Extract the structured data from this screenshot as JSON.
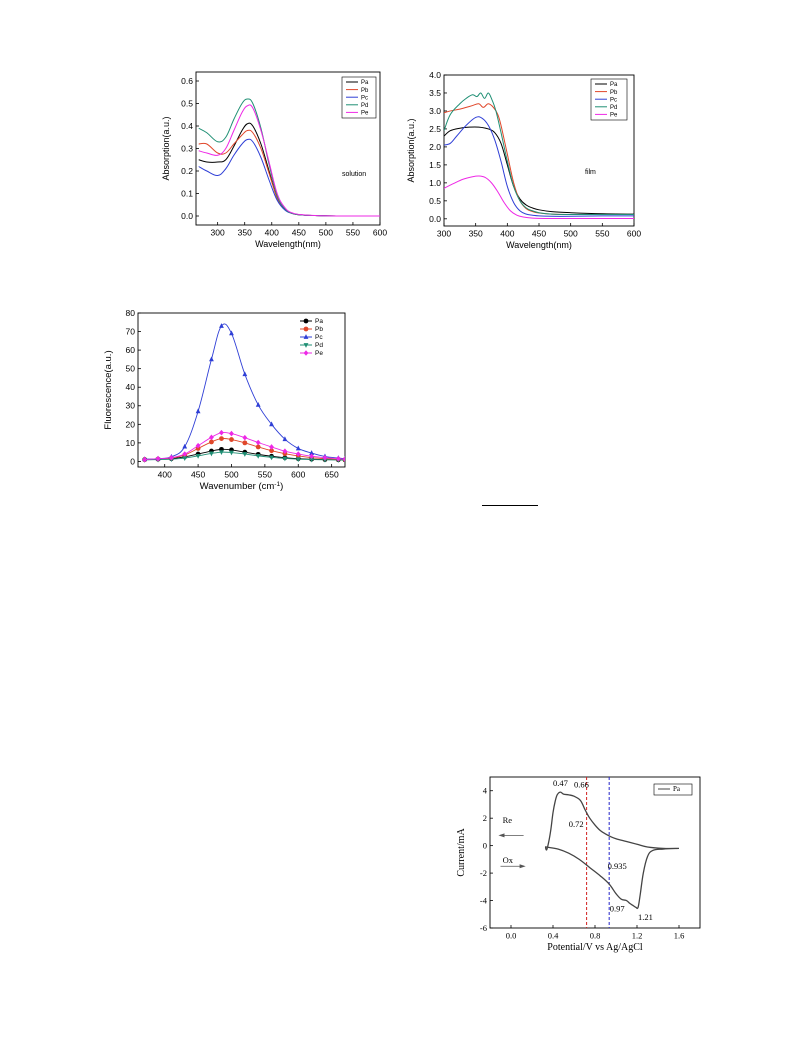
{
  "colors": {
    "axis": "#000000",
    "Pa": "#000000",
    "Pb": "#e0472a",
    "Pc": "#2f3fd6",
    "Pd": "#1f8f74",
    "Pe": "#ee28e6",
    "cv_red": "#d22020",
    "cv_blue": "#2626c8",
    "cv_curve": "#444444"
  },
  "chart_data": [
    {
      "id": "abs-solution",
      "type": "line",
      "title": "",
      "annotation": "solution",
      "xlabel": "Wavelength(nm)",
      "ylabel": "Absorption(a.u.)",
      "xlim": [
        260,
        600
      ],
      "ylim": [
        -0.04,
        0.64
      ],
      "xticks": [
        300,
        350,
        400,
        450,
        500,
        550,
        600
      ],
      "xtick_labels": [
        "300",
        "350",
        "400",
        "450",
        "500",
        "550",
        "600"
      ],
      "yticks": [
        0.0,
        0.1,
        0.2,
        0.3,
        0.4,
        0.5,
        0.6
      ],
      "ytick_labels": [
        "0.0",
        "0.1",
        "0.2",
        "0.3",
        "0.4",
        "0.5",
        "0.6"
      ],
      "legend_position": "top-right",
      "grid": false,
      "series": [
        {
          "name": "Pa",
          "color": "#000000",
          "x": [
            265,
            280,
            300,
            315,
            330,
            345,
            355,
            365,
            380,
            395,
            410,
            425,
            440,
            460,
            480,
            520,
            600
          ],
          "y": [
            0.25,
            0.24,
            0.24,
            0.25,
            0.31,
            0.38,
            0.41,
            0.4,
            0.32,
            0.2,
            0.08,
            0.03,
            0.01,
            0.004,
            0.002,
            0.0,
            0.0
          ]
        },
        {
          "name": "Pb",
          "color": "#e0472a",
          "x": [
            265,
            280,
            300,
            315,
            330,
            345,
            355,
            365,
            380,
            395,
            410,
            425,
            440,
            460,
            480,
            520,
            600
          ],
          "y": [
            0.32,
            0.32,
            0.28,
            0.28,
            0.32,
            0.36,
            0.38,
            0.37,
            0.3,
            0.19,
            0.08,
            0.03,
            0.01,
            0.004,
            0.002,
            0.0,
            0.0
          ]
        },
        {
          "name": "Pc",
          "color": "#2f3fd6",
          "x": [
            265,
            280,
            300,
            315,
            330,
            345,
            355,
            365,
            380,
            395,
            410,
            425,
            440,
            460,
            480,
            520,
            600
          ],
          "y": [
            0.22,
            0.2,
            0.18,
            0.21,
            0.27,
            0.32,
            0.34,
            0.33,
            0.26,
            0.16,
            0.07,
            0.025,
            0.01,
            0.004,
            0.002,
            0.0,
            0.0
          ]
        },
        {
          "name": "Pd",
          "color": "#1f8f74",
          "x": [
            265,
            280,
            300,
            315,
            330,
            345,
            355,
            365,
            380,
            395,
            410,
            425,
            440,
            460,
            480,
            520,
            600
          ],
          "y": [
            0.39,
            0.37,
            0.33,
            0.35,
            0.43,
            0.5,
            0.52,
            0.5,
            0.39,
            0.23,
            0.09,
            0.03,
            0.01,
            0.004,
            0.002,
            0.0,
            0.0
          ]
        },
        {
          "name": "Pe",
          "color": "#ee28e6",
          "x": [
            265,
            280,
            300,
            315,
            330,
            345,
            355,
            365,
            380,
            395,
            410,
            425,
            440,
            460,
            480,
            520,
            600
          ],
          "y": [
            0.29,
            0.28,
            0.27,
            0.3,
            0.38,
            0.46,
            0.49,
            0.48,
            0.38,
            0.24,
            0.1,
            0.035,
            0.012,
            0.005,
            0.002,
            0.0,
            0.0
          ]
        }
      ]
    },
    {
      "id": "abs-film",
      "type": "line",
      "title": "",
      "annotation": "film",
      "xlabel": "Wavelength(nm)",
      "ylabel": "Absorption(a.u.)",
      "xlim": [
        300,
        600
      ],
      "ylim": [
        -0.2,
        4.0
      ],
      "xticks": [
        300,
        350,
        400,
        450,
        500,
        550,
        600
      ],
      "xtick_labels": [
        "300",
        "350",
        "400",
        "450",
        "500",
        "550",
        "600"
      ],
      "yticks": [
        0.0,
        0.5,
        1.0,
        1.5,
        2.0,
        2.5,
        3.0,
        3.5,
        4.0
      ],
      "ytick_labels": [
        "0.0",
        "0.5",
        "1.0",
        "1.5",
        "2.0",
        "2.5",
        "3.0",
        "3.5",
        "4.0"
      ],
      "legend_position": "top-right",
      "grid": false,
      "series": [
        {
          "name": "Pa",
          "color": "#000000",
          "x": [
            300,
            310,
            325,
            340,
            355,
            370,
            380,
            390,
            400,
            410,
            420,
            430,
            440,
            450,
            470,
            500,
            550,
            600
          ],
          "y": [
            2.3,
            2.45,
            2.52,
            2.55,
            2.55,
            2.5,
            2.4,
            2.1,
            1.5,
            0.9,
            0.55,
            0.38,
            0.3,
            0.25,
            0.2,
            0.17,
            0.14,
            0.13
          ]
        },
        {
          "name": "Pb",
          "color": "#e0472a",
          "x": [
            300,
            310,
            325,
            335,
            345,
            355,
            362,
            370,
            378,
            385,
            390,
            400,
            410,
            420,
            430,
            440,
            450,
            470,
            500,
            550,
            600
          ],
          "y": [
            2.95,
            3.0,
            3.05,
            3.1,
            3.15,
            3.2,
            3.1,
            3.2,
            3.1,
            2.9,
            2.6,
            1.8,
            1.0,
            0.5,
            0.28,
            0.2,
            0.16,
            0.13,
            0.12,
            0.12,
            0.12
          ]
        },
        {
          "name": "Pc",
          "color": "#2f3fd6",
          "x": [
            300,
            310,
            320,
            335,
            350,
            360,
            370,
            380,
            390,
            400,
            410,
            420,
            430,
            440,
            450,
            470,
            500,
            550,
            600
          ],
          "y": [
            2.05,
            2.1,
            2.3,
            2.6,
            2.82,
            2.8,
            2.6,
            2.2,
            1.6,
            0.9,
            0.45,
            0.22,
            0.13,
            0.1,
            0.08,
            0.07,
            0.07,
            0.08,
            0.08
          ]
        },
        {
          "name": "Pd",
          "color": "#1f8f74",
          "x": [
            300,
            310,
            325,
            335,
            345,
            352,
            358,
            364,
            370,
            376,
            382,
            390,
            400,
            410,
            420,
            430,
            440,
            450,
            470,
            500,
            550,
            600
          ],
          "y": [
            2.45,
            2.9,
            3.2,
            3.35,
            3.45,
            3.4,
            3.5,
            3.35,
            3.5,
            3.3,
            3.0,
            2.4,
            1.6,
            0.9,
            0.5,
            0.3,
            0.22,
            0.17,
            0.13,
            0.12,
            0.12,
            0.12
          ]
        },
        {
          "name": "Pe",
          "color": "#ee28e6",
          "x": [
            300,
            315,
            330,
            345,
            355,
            365,
            375,
            385,
            395,
            405,
            415,
            425,
            440,
            460,
            500,
            550,
            600
          ],
          "y": [
            0.85,
            0.98,
            1.1,
            1.17,
            1.19,
            1.15,
            1.0,
            0.75,
            0.45,
            0.22,
            0.1,
            0.05,
            0.02,
            0.01,
            0.01,
            0.01,
            0.01
          ]
        }
      ]
    },
    {
      "id": "fluorescence",
      "type": "line",
      "title": "",
      "xlabel": "Wavenumber (cm",
      "xlabel_superscript": "-1",
      "xlabel_suffix": ")",
      "ylabel": "Fluorescence(a.u.)",
      "xlim": [
        360,
        670
      ],
      "ylim": [
        -3,
        80
      ],
      "xticks": [
        400,
        450,
        500,
        550,
        600,
        650
      ],
      "xtick_labels": [
        "400",
        "450",
        "500",
        "550",
        "600",
        "650"
      ],
      "yticks": [
        0,
        10,
        20,
        30,
        40,
        50,
        60,
        70,
        80
      ],
      "ytick_labels": [
        "0",
        "10",
        "20",
        "30",
        "40",
        "50",
        "60",
        "70",
        "80"
      ],
      "legend_position": "top-right",
      "grid": false,
      "series": [
        {
          "name": "Pa",
          "color": "#000000",
          "marker": "circle",
          "x": [
            370,
            390,
            410,
            430,
            450,
            470,
            485,
            500,
            520,
            540,
            560,
            580,
            600,
            620,
            640,
            660,
            670
          ],
          "y": [
            1.0,
            1.2,
            1.5,
            2.5,
            4.0,
            5.6,
            6.5,
            6.2,
            5.0,
            3.8,
            2.8,
            2.0,
            1.5,
            1.2,
            1.0,
            0.9,
            0.8
          ]
        },
        {
          "name": "Pb",
          "color": "#e0472a",
          "marker": "circle",
          "x": [
            370,
            390,
            410,
            430,
            450,
            470,
            485,
            500,
            520,
            540,
            560,
            580,
            600,
            620,
            640,
            660,
            670
          ],
          "y": [
            1.0,
            1.3,
            1.8,
            3.5,
            7.0,
            10.5,
            12.3,
            11.8,
            10.0,
            7.8,
            5.8,
            4.2,
            3.0,
            2.0,
            1.5,
            1.2,
            1.0
          ]
        },
        {
          "name": "Pc",
          "color": "#2f3fd6",
          "marker": "triangle-up",
          "x": [
            370,
            390,
            410,
            430,
            450,
            470,
            485,
            500,
            520,
            540,
            560,
            580,
            600,
            620,
            640,
            660,
            670
          ],
          "y": [
            1.2,
            1.5,
            2.5,
            8.0,
            27.0,
            55.0,
            73.0,
            69.0,
            47.0,
            30.5,
            20.0,
            12.0,
            7.0,
            4.5,
            2.7,
            1.8,
            1.5
          ]
        },
        {
          "name": "Pd",
          "color": "#1f8f74",
          "marker": "triangle-down",
          "x": [
            370,
            390,
            410,
            430,
            450,
            470,
            485,
            500,
            520,
            540,
            560,
            580,
            600,
            620,
            640,
            660,
            670
          ],
          "y": [
            0.8,
            1.0,
            1.2,
            1.8,
            3.0,
            4.3,
            5.0,
            4.8,
            4.0,
            3.0,
            2.2,
            1.6,
            1.2,
            1.0,
            0.9,
            0.8,
            0.7
          ]
        },
        {
          "name": "Pe",
          "color": "#ee28e6",
          "marker": "diamond",
          "x": [
            370,
            390,
            410,
            430,
            450,
            470,
            485,
            500,
            520,
            540,
            560,
            580,
            600,
            620,
            640,
            660,
            670
          ],
          "y": [
            1.0,
            1.5,
            2.0,
            4.0,
            8.5,
            13.0,
            15.5,
            15.0,
            12.8,
            10.2,
            7.8,
            5.5,
            4.0,
            2.8,
            2.0,
            1.5,
            1.2
          ]
        }
      ]
    },
    {
      "id": "cyclic-voltammetry",
      "type": "line",
      "title": "",
      "xlabel": "Potential/V vs Ag/AgCl",
      "ylabel": "Current/mA",
      "xlim": [
        -0.2,
        1.8
      ],
      "ylim": [
        -6,
        5
      ],
      "xticks": [
        0.0,
        0.4,
        0.8,
        1.2,
        1.6
      ],
      "xtick_labels": [
        "0.0",
        "0.4",
        "0.8",
        "1.2",
        "1.6"
      ],
      "yticks": [
        -6,
        -4,
        -2,
        0,
        2,
        4
      ],
      "ytick_labels": [
        "-6",
        "-4",
        "-2",
        "0",
        "2",
        "4"
      ],
      "legend_position": "top-right",
      "grid": false,
      "annotations": [
        "0.47",
        "0.66",
        "0.72",
        "0.935",
        "0.97",
        "1.21",
        "Re",
        "Ox"
      ],
      "guide_lines": [
        {
          "x": 0.72,
          "color": "#d22020"
        },
        {
          "x": 0.935,
          "color": "#2626c8"
        }
      ],
      "series": [
        {
          "name": "Pa",
          "color": "#444444",
          "x": [
            1.6,
            1.45,
            1.3,
            1.2,
            1.1,
            1.0,
            0.95,
            0.9,
            0.85,
            0.8,
            0.75,
            0.72,
            0.7,
            0.66,
            0.6,
            0.55,
            0.5,
            0.47,
            0.44,
            0.42,
            0.4,
            0.38,
            0.36,
            0.34,
            0.33,
            0.35,
            0.45,
            0.55,
            0.65,
            0.75,
            0.85,
            0.935,
            1.0,
            1.05,
            1.1,
            1.13,
            1.16,
            1.19,
            1.21,
            1.23,
            1.26,
            1.3,
            1.35,
            1.45,
            1.6
          ],
          "y": [
            -0.2,
            -0.2,
            -0.1,
            0.1,
            0.3,
            0.5,
            0.65,
            0.85,
            1.1,
            1.5,
            2.0,
            2.4,
            2.7,
            3.3,
            3.6,
            3.7,
            3.75,
            3.9,
            3.7,
            3.2,
            2.4,
            1.2,
            0.3,
            -0.3,
            -0.1,
            -0.12,
            -0.25,
            -0.55,
            -1.0,
            -1.6,
            -2.2,
            -2.8,
            -3.5,
            -3.9,
            -4.0,
            -4.2,
            -4.35,
            -4.5,
            -4.5,
            -3.6,
            -2.0,
            -0.8,
            -0.35,
            -0.25,
            -0.2
          ]
        }
      ]
    }
  ]
}
